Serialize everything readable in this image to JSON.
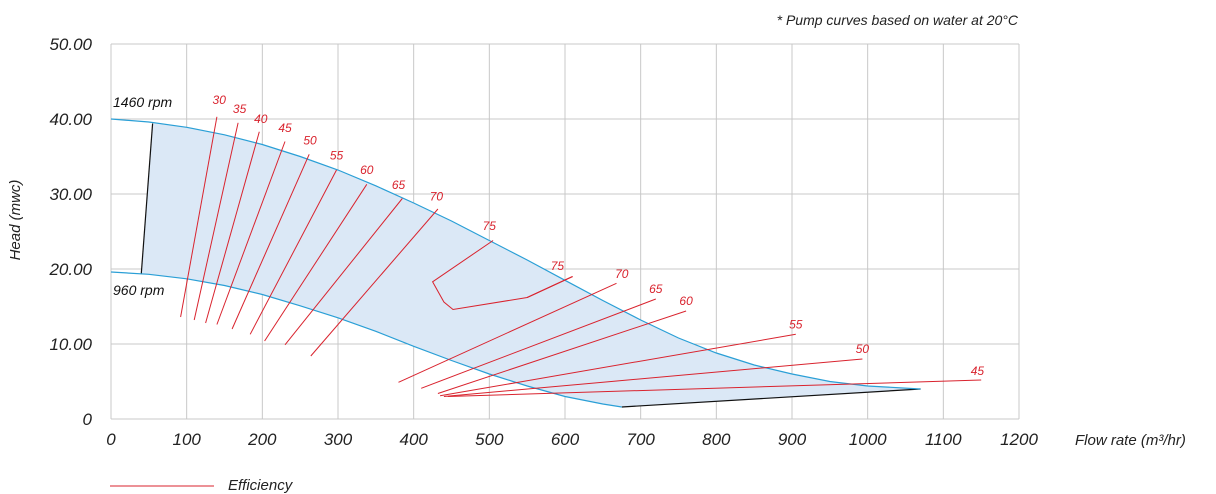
{
  "note": "* Pump curves based on water at 20°C",
  "legend": {
    "label": "Efficiency",
    "color": "#d9232e"
  },
  "colors": {
    "grid": "#c8c8c8",
    "pump_curve": "#2a9fd6",
    "fill": "#dbe8f6",
    "boundary": "#111111",
    "efficiency": "#d9232e"
  },
  "chart_data": {
    "type": "line",
    "title": "",
    "xlabel": "Flow rate (m³/hr)",
    "ylabel": "Head (mwc)",
    "xlim": [
      0,
      1200
    ],
    "ylim": [
      0,
      50
    ],
    "grid": true,
    "legend_position": "bottom-left",
    "x_ticks": [
      0,
      100,
      200,
      300,
      400,
      500,
      600,
      700,
      800,
      900,
      1000,
      1100,
      1200
    ],
    "x_tick_labels": [
      "0",
      "100",
      "200",
      "300",
      "400",
      "500",
      "600",
      "700",
      "800",
      "900",
      "1000",
      "1100",
      "1200"
    ],
    "y_ticks": [
      0,
      10,
      20,
      30,
      40,
      50
    ],
    "y_tick_labels": [
      "0",
      "10.00",
      "20.00",
      "30.00",
      "40.00",
      "50.00"
    ],
    "series": [
      {
        "name": "1460 rpm",
        "points": [
          [
            0,
            40
          ],
          [
            50,
            39.6
          ],
          [
            100,
            38.9
          ],
          [
            150,
            37.9
          ],
          [
            200,
            36.6
          ],
          [
            250,
            35.0
          ],
          [
            300,
            33.2
          ],
          [
            350,
            31.1
          ],
          [
            400,
            28.8
          ],
          [
            450,
            26.4
          ],
          [
            500,
            23.8
          ],
          [
            550,
            21.2
          ],
          [
            600,
            18.5
          ],
          [
            650,
            15.8
          ],
          [
            700,
            13.2
          ],
          [
            750,
            10.8
          ],
          [
            800,
            8.8
          ],
          [
            850,
            7.2
          ],
          [
            900,
            6.0
          ],
          [
            950,
            5.0
          ],
          [
            1000,
            4.4
          ],
          [
            1070,
            4.0
          ]
        ]
      },
      {
        "name": "960 rpm",
        "points": [
          [
            0,
            19.6
          ],
          [
            50,
            19.3
          ],
          [
            100,
            18.7
          ],
          [
            150,
            17.8
          ],
          [
            200,
            16.6
          ],
          [
            250,
            15.1
          ],
          [
            300,
            13.5
          ],
          [
            350,
            11.7
          ],
          [
            400,
            9.7
          ],
          [
            450,
            7.8
          ],
          [
            500,
            6.0
          ],
          [
            550,
            4.4
          ],
          [
            600,
            3.0
          ],
          [
            650,
            2.0
          ],
          [
            675,
            1.6
          ]
        ]
      }
    ],
    "boundaries": [
      {
        "points": [
          [
            55,
            39.4
          ],
          [
            40,
            19.4
          ]
        ]
      },
      {
        "points": [
          [
            675,
            1.6
          ],
          [
            1070,
            4.0
          ]
        ]
      }
    ],
    "efficiency_lines": [
      {
        "label": "30",
        "points": [
          [
            92,
            13.6
          ],
          [
            140,
            40.3
          ]
        ],
        "label_at": [
          143,
          42.0
        ]
      },
      {
        "label": "35",
        "points": [
          [
            110,
            13.2
          ],
          [
            168,
            39.5
          ]
        ],
        "label_at": [
          170,
          40.8
        ]
      },
      {
        "label": "40",
        "points": [
          [
            125,
            12.8
          ],
          [
            196,
            38.3
          ]
        ],
        "label_at": [
          198,
          39.5
        ]
      },
      {
        "label": "45",
        "points": [
          [
            140,
            12.6
          ],
          [
            230,
            37.0
          ]
        ],
        "label_at": [
          230,
          38.3
        ]
      },
      {
        "label": "50",
        "points": [
          [
            160,
            12.0
          ],
          [
            262,
            35.3
          ]
        ],
        "label_at": [
          263,
          36.6
        ]
      },
      {
        "label": "55",
        "points": [
          [
            184,
            11.3
          ],
          [
            298,
            33.2
          ]
        ],
        "label_at": [
          298,
          34.6
        ]
      },
      {
        "label": "60",
        "points": [
          [
            203,
            10.4
          ],
          [
            338,
            31.3
          ]
        ],
        "label_at": [
          338,
          32.7
        ]
      },
      {
        "label": "65",
        "points": [
          [
            230,
            9.9
          ],
          [
            385,
            29.4
          ]
        ],
        "label_at": [
          380,
          30.7
        ]
      },
      {
        "label": "70",
        "points": [
          [
            264,
            8.4
          ],
          [
            432,
            28.0
          ]
        ],
        "label_at": [
          430,
          29.1
        ]
      },
      {
        "label": "75",
        "points": [
          [
            505,
            23.8
          ],
          [
            425,
            18.3
          ],
          [
            440,
            15.6
          ],
          [
            452,
            14.6
          ],
          [
            550,
            16.2
          ],
          [
            610,
            19.0
          ]
        ],
        "label_at": [
          500,
          25.2
        ]
      },
      {
        "label": "75",
        "points": [
          [
            550,
            16.2
          ],
          [
            610,
            19.0
          ]
        ],
        "label_at": [
          590,
          19.9
        ]
      },
      {
        "label": "70",
        "points": [
          [
            380,
            4.9
          ],
          [
            668,
            18.1
          ]
        ],
        "label_at": [
          675,
          18.8
        ]
      },
      {
        "label": "65",
        "points": [
          [
            410,
            4.1
          ],
          [
            720,
            16.0
          ]
        ],
        "label_at": [
          720,
          16.8
        ]
      },
      {
        "label": "60",
        "points": [
          [
            432,
            3.4
          ],
          [
            760,
            14.4
          ]
        ],
        "label_at": [
          760,
          15.2
        ]
      },
      {
        "label": "55",
        "points": [
          [
            435,
            3.1
          ],
          [
            905,
            11.3
          ]
        ],
        "label_at": [
          905,
          12.1
        ]
      },
      {
        "label": "50",
        "points": [
          [
            440,
            3.0
          ],
          [
            993,
            8.0
          ]
        ],
        "label_at": [
          993,
          8.8
        ]
      },
      {
        "label": "45",
        "points": [
          [
            445,
            3.0
          ],
          [
            1150,
            5.2
          ]
        ],
        "label_at": [
          1145,
          5.9
        ]
      }
    ]
  },
  "annotations": {
    "rpm_high": "1460 rpm",
    "rpm_low": "960 rpm"
  }
}
